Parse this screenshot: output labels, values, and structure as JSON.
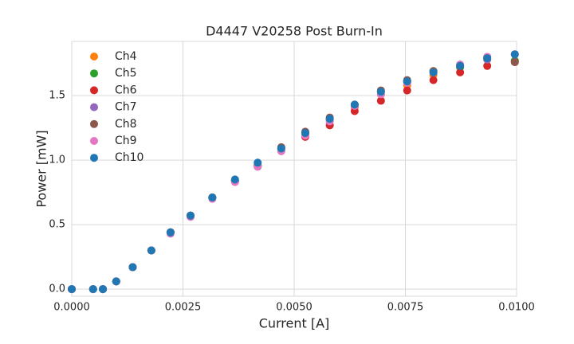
{
  "chart_data": {
    "type": "scatter",
    "title": "D4447 V20258 Post Burn-In",
    "x_label": "Current [A]",
    "y_label": "Power [mW]",
    "x": [
      0,
      0.00048,
      0.0007,
      0.001,
      0.00137,
      0.00179,
      0.00222,
      0.00267,
      0.00316,
      0.00367,
      0.00418,
      0.00471,
      0.00525,
      0.0058,
      0.00636,
      0.00695,
      0.00754,
      0.00813,
      0.00873,
      0.00934,
      0.00996
    ],
    "series": [
      {
        "name": "Ch4",
        "color": "#ff7f0e",
        "values": [
          0,
          0,
          0,
          0.06,
          0.17,
          0.3,
          0.44,
          0.57,
          0.71,
          0.84,
          0.96,
          1.09,
          1.2,
          1.31,
          1.41,
          1.51,
          1.58,
          1.66,
          1.72,
          1.78,
          1.77
        ]
      },
      {
        "name": "Ch5",
        "color": "#2ca02c",
        "values": [
          0,
          0,
          0,
          0.06,
          0.17,
          0.3,
          0.44,
          0.57,
          0.71,
          0.84,
          0.96,
          1.09,
          1.21,
          1.32,
          1.42,
          1.53,
          1.61,
          1.69,
          1.72,
          1.79,
          1.77
        ]
      },
      {
        "name": "Ch6",
        "color": "#d62728",
        "values": [
          0,
          0,
          0,
          0.06,
          0.17,
          0.3,
          0.44,
          0.57,
          0.71,
          0.84,
          0.95,
          1.07,
          1.18,
          1.27,
          1.38,
          1.46,
          1.54,
          1.62,
          1.68,
          1.73,
          1.76
        ]
      },
      {
        "name": "Ch7",
        "color": "#9467bd",
        "values": [
          0,
          0,
          0,
          0.06,
          0.17,
          0.3,
          0.44,
          0.57,
          0.71,
          0.84,
          0.95,
          1.09,
          1.21,
          1.32,
          1.43,
          1.53,
          1.61,
          1.68,
          1.73,
          1.78,
          1.82
        ]
      },
      {
        "name": "Ch8",
        "color": "#8c564b",
        "values": [
          0,
          0,
          0,
          0.06,
          0.17,
          0.3,
          0.44,
          0.57,
          0.71,
          0.84,
          0.96,
          1.1,
          1.22,
          1.33,
          1.43,
          1.54,
          1.62,
          1.69,
          1.74,
          1.8,
          1.76
        ]
      },
      {
        "name": "Ch9",
        "color": "#e377c2",
        "values": [
          0,
          0,
          0,
          0.06,
          0.17,
          0.3,
          0.43,
          0.56,
          0.7,
          0.83,
          0.95,
          1.07,
          1.19,
          1.3,
          1.42,
          1.51,
          1.6,
          1.68,
          1.74,
          1.8,
          1.82
        ]
      },
      {
        "name": "Ch10",
        "color": "#1f77b4",
        "values": [
          0,
          0,
          0,
          0.06,
          0.17,
          0.3,
          0.44,
          0.57,
          0.71,
          0.85,
          0.98,
          1.09,
          1.21,
          1.32,
          1.43,
          1.53,
          1.61,
          1.68,
          1.73,
          1.79,
          1.82
        ]
      }
    ],
    "xlim": [
      0,
      0.01
    ],
    "ylim": [
      -0.055,
      1.92
    ],
    "xticks": [
      {
        "value": 0,
        "label": "0.0000"
      },
      {
        "value": 0.0025,
        "label": "0.0025"
      },
      {
        "value": 0.005,
        "label": "0.0050"
      },
      {
        "value": 0.0075,
        "label": "0.0075"
      },
      {
        "value": 0.01,
        "label": "0.0100"
      }
    ],
    "yticks": [
      {
        "value": 0,
        "label": "0.0"
      },
      0.5,
      {
        "value": 1,
        "label": "1.0"
      },
      1.5
    ],
    "grid": true,
    "legend": "upper-left"
  }
}
